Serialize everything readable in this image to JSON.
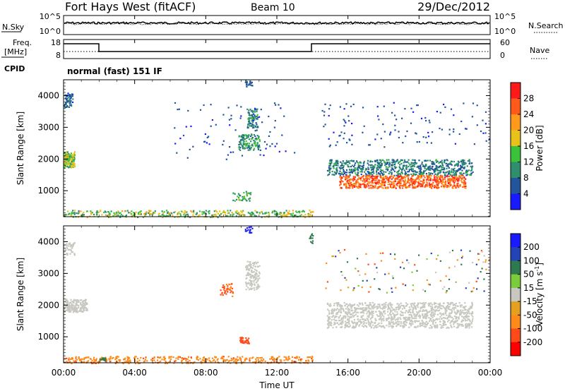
{
  "header": {
    "site": "Fort Hays West (fitACF)",
    "beam": "Beam 10",
    "date": "29/Dec/2012"
  },
  "sky_panel": {
    "left_label": "N.Sky",
    "right_label": "N.Search",
    "left_ticks": [
      "10^5",
      "10^0"
    ],
    "right_ticks": [
      "10^5",
      "10^0"
    ]
  },
  "freq_panel": {
    "left_label_1": "Freq.",
    "left_label_2": "[MHz]",
    "right_label": "Nave",
    "left_ticks": [
      "18",
      "8"
    ],
    "right_ticks": [
      "60",
      "0"
    ],
    "cpid_label": "CPID",
    "cpid_text": "normal (fast) 151 IF"
  },
  "x_axis": {
    "label": "Time UT",
    "ticks": [
      "00:00",
      "04:00",
      "08:00",
      "12:00",
      "16:00",
      "20:00",
      "00:00"
    ]
  },
  "power_panel": {
    "ylabel": "Slant Range [km]",
    "yticks": [
      "4000",
      "3000",
      "2000",
      "1000"
    ],
    "colorbar_title": "Power [dB]",
    "colorbar_ticks": [
      "28",
      "24",
      "20",
      "16",
      "12",
      "8",
      "4"
    ]
  },
  "velocity_panel": {
    "ylabel": "Slant Range [km]",
    "yticks": [
      "4000",
      "3000",
      "2000",
      "1000"
    ],
    "colorbar_title": "Velocity [m s",
    "colorbar_title_sup": "-1",
    "colorbar_title_end": "]",
    "colorbar_ticks": [
      "200",
      "100",
      "50",
      "15",
      "-15",
      "-50",
      "-100",
      "-200"
    ]
  },
  "colors": {
    "power_scale": [
      "#ff1a1a",
      "#ff5a1a",
      "#ff9a1a",
      "#e8c21a",
      "#3ac23a",
      "#2e8e6e",
      "#22559a",
      "#1a1aff"
    ],
    "velocity_scale": [
      "#1a1aff",
      "#2244b4",
      "#2e7a4e",
      "#7acc3a",
      "#c8c8c0",
      "#e6a020",
      "#ff8a1a",
      "#ff4a1a",
      "#ff0000"
    ]
  },
  "chart_data": [
    {
      "type": "line",
      "title": "N.Sky / N.Search",
      "x": [
        "00:00",
        "24:00"
      ],
      "series": [
        {
          "name": "N.Sky",
          "values": [
            3.2,
            3.2
          ]
        },
        {
          "name": "N.Search",
          "values": [
            0.5,
            0.5
          ]
        }
      ],
      "ylim": [
        0,
        5
      ]
    },
    {
      "type": "line",
      "title": "Freq./Nave",
      "x": [
        "00:00",
        "02:00",
        "14:00",
        "24:00"
      ],
      "series": [
        {
          "name": "Freq.",
          "values": [
            15,
            10,
            15,
            15
          ]
        },
        {
          "name": "Nave",
          "values": [
            20,
            20,
            20,
            20
          ]
        }
      ],
      "ylim_freq": [
        8,
        18
      ],
      "ylim_nave": [
        0,
        60
      ]
    },
    {
      "type": "heatmap",
      "title": "Power [dB]",
      "x_range_hours": [
        0,
        24
      ],
      "y_range_km": [
        180,
        4500
      ],
      "color_range": [
        0,
        30
      ],
      "regions": [
        {
          "t": [
            0.0,
            0.6
          ],
          "r": [
            1800,
            2200
          ],
          "value": 14
        },
        {
          "t": [
            0.0,
            0.5
          ],
          "r": [
            3700,
            4100
          ],
          "value": 6
        },
        {
          "t": [
            9.8,
            11.0
          ],
          "r": [
            2400,
            2800
          ],
          "value": 10
        },
        {
          "t": [
            10.3,
            10.9
          ],
          "r": [
            3000,
            3600
          ],
          "value": 8
        },
        {
          "t": [
            14.8,
            23.0
          ],
          "r": [
            1100,
            1800
          ],
          "value": 24
        },
        {
          "t": [
            0.0,
            24.0
          ],
          "r": [
            180,
            400
          ],
          "value": 12
        }
      ]
    },
    {
      "type": "heatmap",
      "title": "Velocity [m s-1]",
      "x_range_hours": [
        0,
        24
      ],
      "y_range_km": [
        180,
        4500
      ],
      "color_range": [
        -200,
        200
      ],
      "regions": [
        {
          "t": [
            14.8,
            23.0
          ],
          "r": [
            1300,
            2100
          ],
          "value": 0
        },
        {
          "t": [
            0.0,
            1.3
          ],
          "r": [
            1800,
            2200
          ],
          "value": 0
        },
        {
          "t": [
            8.8,
            9.5
          ],
          "r": [
            2300,
            2700
          ],
          "value": -80
        },
        {
          "t": [
            9.9,
            10.4
          ],
          "r": [
            800,
            1000
          ],
          "value": -90
        },
        {
          "t": [
            0.0,
            24.0
          ],
          "r": [
            180,
            400
          ],
          "value": -60
        }
      ]
    }
  ]
}
